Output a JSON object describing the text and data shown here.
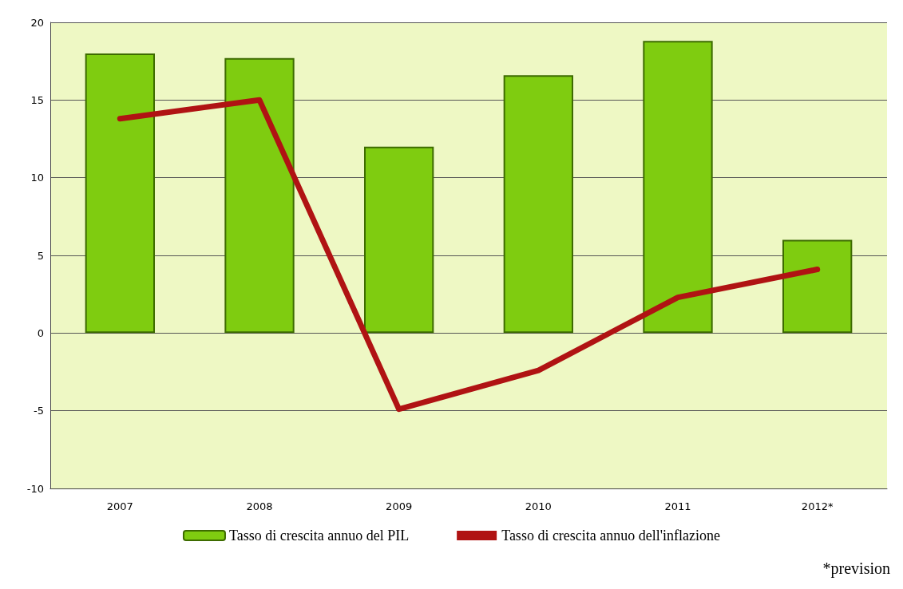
{
  "chart_data": {
    "type": "bar",
    "categories": [
      "2007",
      "2008",
      "2009",
      "2010",
      "2011",
      "2012*"
    ],
    "series": [
      {
        "name": "Tasso di crescita annuo del PIL",
        "color": "#7fcc10",
        "values": [
          18,
          17.7,
          12,
          16.6,
          18.8,
          6
        ]
      },
      {
        "name": "Tasso di crescita annuo dell'inflazione",
        "type": "line",
        "color": "#b01313",
        "values": [
          13.8,
          15,
          -4.9,
          -2.4,
          2.3,
          4.1
        ]
      }
    ],
    "ylim": [
      -10,
      20
    ],
    "yticks": [
      -10,
      -5,
      0,
      5,
      10,
      15,
      20
    ],
    "grid": "y",
    "legend": "bottom",
    "marker": "none",
    "annotations": [
      "*prevision"
    ]
  }
}
